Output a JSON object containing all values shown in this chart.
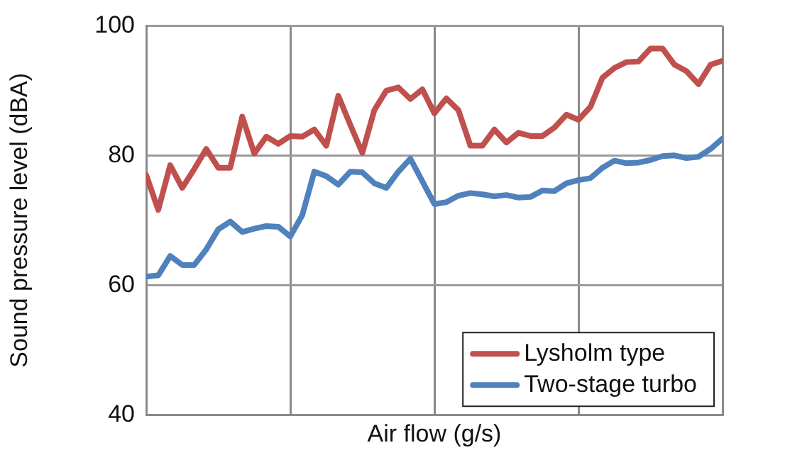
{
  "chart_data": {
    "type": "line",
    "xlabel": "Air flow (g/s)",
    "ylabel": "Sound pressure level (dBA)",
    "categories": [
      null,
      null,
      null,
      null,
      null,
      null,
      null,
      null,
      null,
      null,
      null,
      null,
      null,
      null,
      null,
      null,
      null,
      null,
      null,
      null,
      null,
      null,
      null,
      null,
      null,
      null,
      null,
      null,
      null,
      null,
      null,
      null,
      null,
      null,
      null,
      null,
      null,
      null,
      null,
      null,
      null,
      null,
      null,
      null,
      null,
      null,
      null,
      null,
      null
    ],
    "series": [
      {
        "name": "Lysholm type",
        "color": "#c0504d",
        "values": [
          77,
          71.6,
          78.5,
          75,
          77.9,
          81,
          78.1,
          78.1,
          86,
          80.3,
          82.9,
          81.8,
          83,
          82.9,
          84,
          81.5,
          89.2,
          84.7,
          80.4,
          87,
          90,
          90.5,
          88.7,
          90.2,
          86.5,
          88.8,
          87,
          81.5,
          81.5,
          84,
          82,
          83.5,
          83,
          83,
          84.3,
          86.3,
          85.5,
          87.5,
          92,
          93.5,
          94.4,
          94.5,
          96.5,
          96.5,
          94,
          93,
          91,
          94,
          94.6
        ]
      },
      {
        "name": "Two-stage turbo",
        "color": "#4f81bd",
        "values": [
          61.3,
          61.5,
          64.5,
          63.1,
          63.1,
          65.5,
          68.6,
          69.8,
          68.2,
          68.7,
          69.1,
          69,
          67.5,
          70.8,
          77.5,
          76.8,
          75.5,
          77.5,
          77.4,
          75.7,
          75,
          77.5,
          79.5,
          76,
          72.5,
          72.8,
          73.8,
          74.2,
          74,
          73.7,
          73.9,
          73.5,
          73.6,
          74.6,
          74.5,
          75.7,
          76.2,
          76.5,
          78.1,
          79.2,
          78.8,
          78.9,
          79.3,
          79.9,
          80,
          79.6,
          79.8,
          81,
          82.6
        ]
      }
    ],
    "ylim": [
      40,
      100
    ],
    "yticks": [
      40,
      60,
      80,
      100
    ],
    "grid": true,
    "legend": "bottom right",
    "tick_labels": "y",
    "marker": "none",
    "line_style": "solid"
  }
}
